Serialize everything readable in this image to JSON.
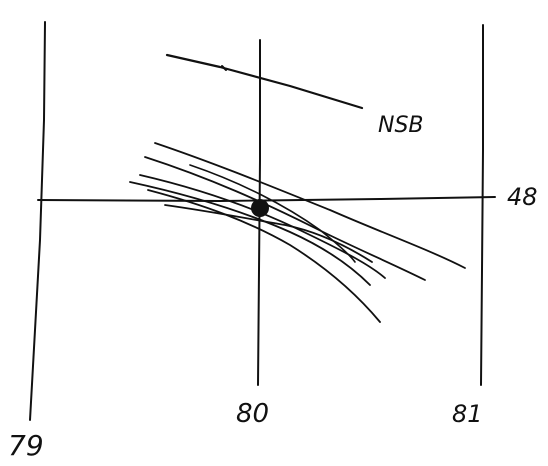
{
  "labels": {
    "x_left": "79",
    "x_mid": "80",
    "x_right": "81",
    "y_right": "48",
    "annotation": "NSB"
  },
  "marker": {
    "description": "filled point",
    "color": "#111111"
  }
}
